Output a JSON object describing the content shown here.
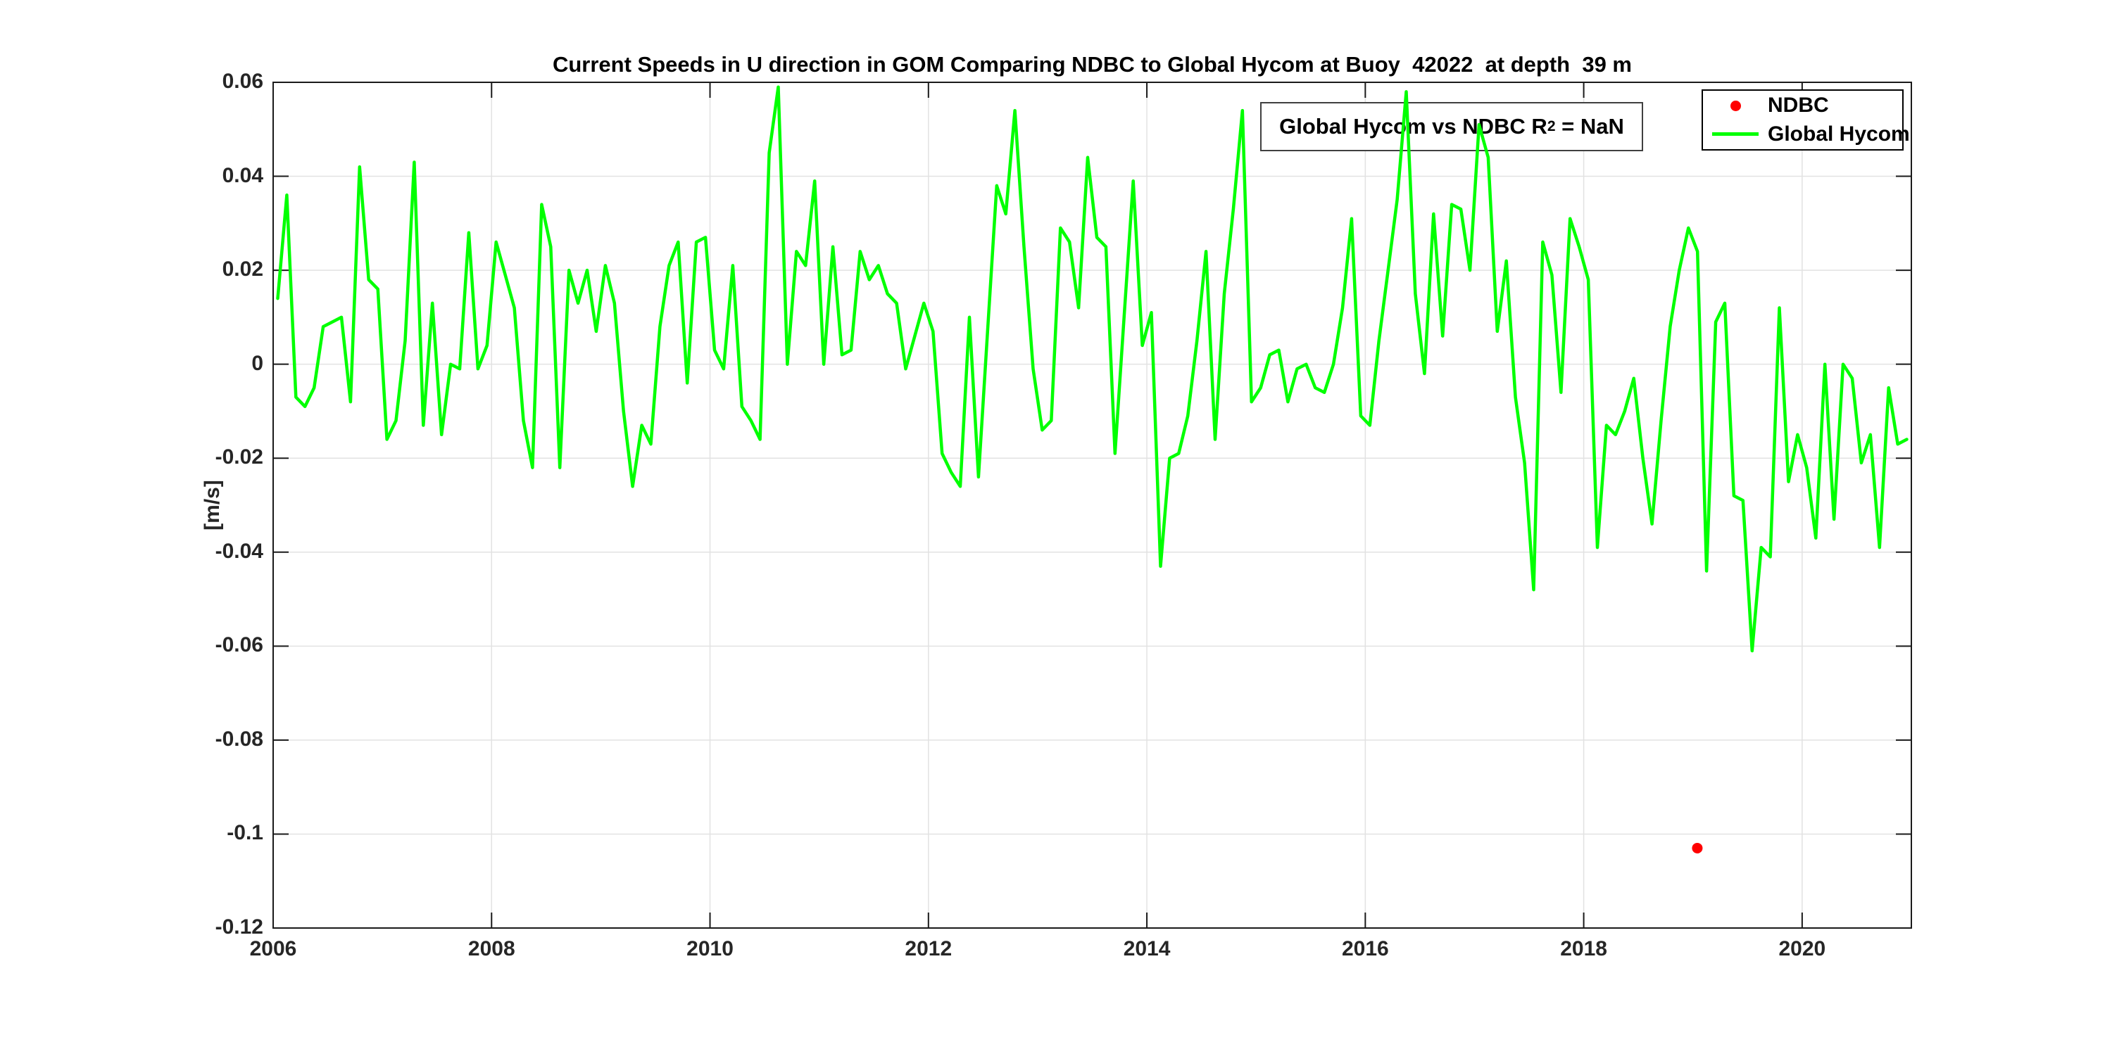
{
  "figure": {
    "background": "#ffffff",
    "title": "Current Speeds in U direction in GOM Comparing NDBC to Global Hycom at Buoy  42022  at depth  39 m",
    "ylabel": "[m/s]",
    "annotation": {
      "prefix": "Global Hycom vs NDBC R",
      "superscript": "2",
      "suffix": " = NaN"
    },
    "legend": {
      "items": [
        {
          "label": "NDBC",
          "marker": "dot",
          "color": "#ff0000"
        },
        {
          "label": "Global Hycom",
          "marker": "line",
          "color": "#00ff00"
        }
      ]
    },
    "colors": {
      "hycom_line": "#00ff00",
      "ndbc_marker": "#ff0000",
      "axis": "#1a1a1a",
      "grid": "#e2e2e2",
      "tick_text": "#262626"
    }
  },
  "chart_data": {
    "type": "line",
    "title": "Current Speeds in U direction in GOM Comparing NDBC to Global Hycom at Buoy  42022  at depth  39 m",
    "xlabel": "",
    "ylabel": "[m/s]",
    "xlim": [
      2006,
      2021
    ],
    "ylim": [
      -0.12,
      0.06
    ],
    "grid": true,
    "legend_position": "upper right",
    "x_ticks": [
      2006,
      2008,
      2010,
      2012,
      2014,
      2016,
      2018,
      2020
    ],
    "x_tick_labels": [
      "2006",
      "2008",
      "2010",
      "2012",
      "2014",
      "2016",
      "2018",
      "2020"
    ],
    "y_ticks": [
      0.06,
      0.04,
      0.02,
      0,
      -0.02,
      -0.04,
      -0.06,
      -0.08,
      -0.1,
      -0.12
    ],
    "y_tick_labels": [
      "0.06",
      "0.04",
      "0.02",
      "0",
      "-0.02",
      "-0.04",
      "-0.06",
      "-0.08",
      "-0.1",
      "-0.12"
    ],
    "annotation_text": "Global Hycom vs NDBC R^2 = NaN",
    "series": [
      {
        "name": "Global Hycom",
        "type": "line",
        "color": "#00ff00",
        "start_year": 2006,
        "interval": "monthly",
        "values": [
          0.014,
          0.036,
          -0.007,
          -0.009,
          -0.005,
          0.008,
          0.009,
          0.01,
          -0.008,
          0.042,
          0.018,
          0.016,
          -0.016,
          -0.012,
          0.005,
          0.043,
          -0.013,
          0.013,
          -0.015,
          0.0,
          -0.001,
          0.028,
          -0.001,
          0.004,
          0.026,
          0.019,
          0.012,
          -0.012,
          -0.022,
          0.034,
          0.025,
          -0.022,
          0.02,
          0.013,
          0.02,
          0.007,
          0.021,
          0.013,
          -0.01,
          -0.026,
          -0.013,
          -0.017,
          0.008,
          0.021,
          0.026,
          -0.004,
          0.026,
          0.027,
          0.003,
          -0.001,
          0.021,
          -0.009,
          -0.012,
          -0.016,
          0.045,
          0.059,
          0.0,
          0.024,
          0.021,
          0.039,
          0.0,
          0.025,
          0.002,
          0.003,
          0.024,
          0.018,
          0.021,
          0.015,
          0.013,
          -0.001,
          0.006,
          0.013,
          0.007,
          -0.019,
          -0.023,
          -0.026,
          0.01,
          -0.024,
          0.007,
          0.038,
          0.032,
          0.054,
          0.025,
          -0.001,
          -0.014,
          -0.012,
          0.029,
          0.026,
          0.012,
          0.044,
          0.027,
          0.025,
          -0.019,
          0.01,
          0.039,
          0.004,
          0.011,
          -0.043,
          -0.02,
          -0.019,
          -0.011,
          0.005,
          0.024,
          -0.016,
          0.015,
          0.033,
          0.054,
          -0.008,
          -0.005,
          0.002,
          0.003,
          -0.008,
          -0.001,
          0.0,
          -0.005,
          -0.006,
          0.0,
          0.012,
          0.031,
          -0.011,
          -0.013,
          0.005,
          0.02,
          0.035,
          0.058,
          0.015,
          -0.002,
          0.032,
          0.006,
          0.034,
          0.033,
          0.02,
          0.051,
          0.044,
          0.007,
          0.022,
          -0.007,
          -0.021,
          -0.048,
          0.026,
          0.019,
          -0.006,
          0.031,
          0.025,
          0.018,
          -0.039,
          -0.013,
          -0.015,
          -0.01,
          -0.003,
          -0.02,
          -0.034,
          -0.012,
          0.008,
          0.02,
          0.029,
          0.024,
          -0.044,
          0.009,
          0.013,
          -0.028,
          -0.029,
          -0.061,
          -0.039,
          -0.041,
          0.012,
          -0.025,
          -0.015,
          -0.022,
          -0.037,
          0.0,
          -0.033,
          0.0,
          -0.003,
          -0.021,
          -0.015,
          -0.039,
          -0.005,
          -0.017,
          -0.016
        ]
      },
      {
        "name": "NDBC",
        "type": "scatter",
        "color": "#ff0000",
        "points": [
          {
            "x": 2019.04,
            "y": -0.103
          }
        ]
      }
    ]
  }
}
